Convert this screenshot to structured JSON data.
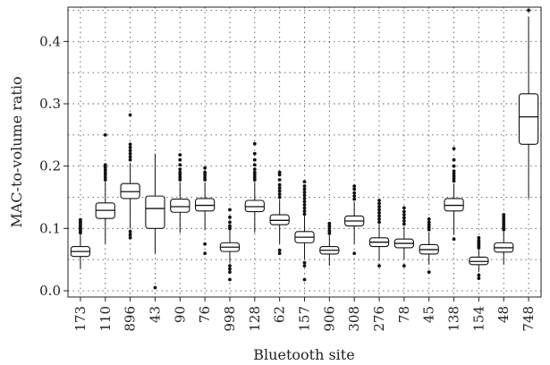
{
  "chart_data": {
    "type": "box",
    "xlabel": "Bluetooth site",
    "ylabel": "MAC-to-volume ratio",
    "ylim": [
      -0.01,
      0.455
    ],
    "yticks": [
      0.0,
      0.1,
      0.2,
      0.3,
      0.4
    ],
    "ytick_labels": [
      "0.0",
      "0.1",
      "0.2",
      "0.3",
      "0.4"
    ],
    "grid": true,
    "categories": [
      "173",
      "110",
      "896",
      "43",
      "90",
      "76",
      "998",
      "128",
      "62",
      "157",
      "906",
      "308",
      "276",
      "78",
      "45",
      "138",
      "154",
      "48",
      "748"
    ],
    "boxes": [
      {
        "site": "173",
        "whislo": 0.035,
        "q1": 0.055,
        "med": 0.063,
        "q3": 0.071,
        "whishi": 0.09,
        "outliers": [
          0.093,
          0.096,
          0.099,
          0.102,
          0.105,
          0.108,
          0.111,
          0.114
        ]
      },
      {
        "site": "110",
        "whislo": 0.075,
        "q1": 0.116,
        "med": 0.129,
        "q3": 0.141,
        "whishi": 0.175,
        "outliers": [
          0.178,
          0.182,
          0.186,
          0.19,
          0.194,
          0.198,
          0.202,
          0.25
        ]
      },
      {
        "site": "896",
        "whislo": 0.1,
        "q1": 0.148,
        "med": 0.159,
        "q3": 0.172,
        "whishi": 0.205,
        "outliers": [
          0.085,
          0.09,
          0.095,
          0.21,
          0.215,
          0.22,
          0.225,
          0.23,
          0.235,
          0.282
        ]
      },
      {
        "site": "43",
        "whislo": 0.06,
        "q1": 0.1,
        "med": 0.132,
        "q3": 0.152,
        "whishi": 0.22,
        "outliers": [
          0.005
        ]
      },
      {
        "site": "90",
        "whislo": 0.093,
        "q1": 0.126,
        "med": 0.135,
        "q3": 0.147,
        "whishi": 0.174,
        "outliers": [
          0.178,
          0.182,
          0.186,
          0.19,
          0.195,
          0.202,
          0.21,
          0.218
        ]
      },
      {
        "site": "76",
        "whislo": 0.097,
        "q1": 0.128,
        "med": 0.137,
        "q3": 0.148,
        "whishi": 0.174,
        "outliers": [
          0.06,
          0.075,
          0.178,
          0.182,
          0.186,
          0.19,
          0.197
        ]
      },
      {
        "site": "998",
        "whislo": 0.045,
        "q1": 0.063,
        "med": 0.07,
        "q3": 0.077,
        "whishi": 0.098,
        "outliers": [
          0.018,
          0.03,
          0.035,
          0.04,
          0.1,
          0.104,
          0.11,
          0.118,
          0.13
        ]
      },
      {
        "site": "128",
        "whislo": 0.093,
        "q1": 0.127,
        "med": 0.135,
        "q3": 0.145,
        "whishi": 0.175,
        "outliers": [
          0.178,
          0.182,
          0.186,
          0.19,
          0.195,
          0.202,
          0.21,
          0.22,
          0.236
        ]
      },
      {
        "site": "62",
        "whislo": 0.075,
        "q1": 0.106,
        "med": 0.113,
        "q3": 0.122,
        "whishi": 0.145,
        "outliers": [
          0.06,
          0.065,
          0.15,
          0.155,
          0.16,
          0.165,
          0.17,
          0.178,
          0.186,
          0.19
        ]
      },
      {
        "site": "157",
        "whislo": 0.05,
        "q1": 0.077,
        "med": 0.086,
        "q3": 0.095,
        "whishi": 0.12,
        "outliers": [
          0.018,
          0.04,
          0.045,
          0.123,
          0.128,
          0.133,
          0.138,
          0.143,
          0.148,
          0.153,
          0.158,
          0.163,
          0.168,
          0.175
        ]
      },
      {
        "site": "906",
        "whislo": 0.04,
        "q1": 0.059,
        "med": 0.065,
        "q3": 0.071,
        "whishi": 0.089,
        "outliers": [
          0.092,
          0.096,
          0.1,
          0.104,
          0.108
        ]
      },
      {
        "site": "308",
        "whislo": 0.075,
        "q1": 0.104,
        "med": 0.112,
        "q3": 0.12,
        "whishi": 0.143,
        "outliers": [
          0.06,
          0.147,
          0.152,
          0.157,
          0.163,
          0.168
        ]
      },
      {
        "site": "276",
        "whislo": 0.048,
        "q1": 0.071,
        "med": 0.078,
        "q3": 0.085,
        "whishi": 0.106,
        "outliers": [
          0.04,
          0.11,
          0.115,
          0.12,
          0.125,
          0.13,
          0.135,
          0.14,
          0.145
        ]
      },
      {
        "site": "78",
        "whislo": 0.05,
        "q1": 0.069,
        "med": 0.076,
        "q3": 0.083,
        "whishi": 0.103,
        "outliers": [
          0.04,
          0.107,
          0.112,
          0.117,
          0.122,
          0.127,
          0.133
        ]
      },
      {
        "site": "45",
        "whislo": 0.042,
        "q1": 0.059,
        "med": 0.066,
        "q3": 0.074,
        "whishi": 0.094,
        "outliers": [
          0.03,
          0.098,
          0.102,
          0.106,
          0.11,
          0.115
        ]
      },
      {
        "site": "138",
        "whislo": 0.09,
        "q1": 0.128,
        "med": 0.137,
        "q3": 0.148,
        "whishi": 0.172,
        "outliers": [
          0.083,
          0.176,
          0.18,
          0.184,
          0.188,
          0.192,
          0.2,
          0.21,
          0.228
        ]
      },
      {
        "site": "154",
        "whislo": 0.03,
        "q1": 0.042,
        "med": 0.047,
        "q3": 0.054,
        "whishi": 0.066,
        "outliers": [
          0.02,
          0.025,
          0.069,
          0.072,
          0.075,
          0.078,
          0.081,
          0.085
        ]
      },
      {
        "site": "48",
        "whislo": 0.042,
        "q1": 0.062,
        "med": 0.069,
        "q3": 0.077,
        "whishi": 0.095,
        "outliers": [
          0.098,
          0.102,
          0.106,
          0.11,
          0.114,
          0.118,
          0.122
        ]
      },
      {
        "site": "748",
        "whislo": 0.148,
        "q1": 0.235,
        "med": 0.279,
        "q3": 0.316,
        "whishi": 0.44,
        "outliers": [
          0.45
        ]
      }
    ]
  }
}
